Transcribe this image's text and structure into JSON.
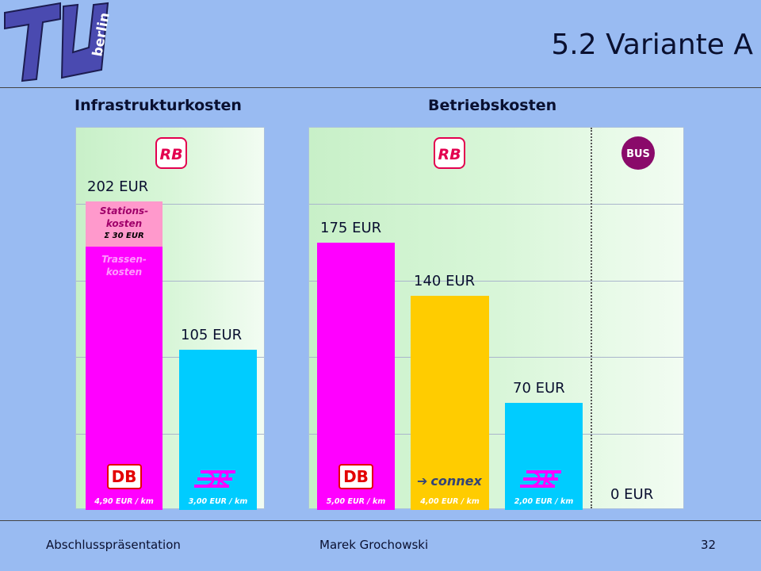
{
  "header": {
    "title": "5.2 Variante A",
    "logo_text": "berlin"
  },
  "chart_data": [
    {
      "type": "bar",
      "title": "Infrastrukturkosten",
      "unit": "EUR",
      "ylim": [
        0,
        250
      ],
      "grid": true,
      "categories": [
        "DB",
        "DRE"
      ],
      "values": [
        202,
        105
      ],
      "value_labels": [
        "202 EUR",
        "105 EUR"
      ],
      "rate_labels": [
        "4,90 EUR / km",
        "3,00 EUR / km"
      ],
      "colors": [
        "#ff00ff",
        "#00ccff"
      ],
      "stacked_segments": [
        {
          "category": "DB",
          "label_lines": [
            "Trassen-",
            "kosten"
          ],
          "value": 172,
          "color": "#ff00ff"
        },
        {
          "category": "DB",
          "label_lines": [
            "Stations-",
            "kosten",
            "Σ  30 EUR"
          ],
          "value": 30,
          "color": "#ff99cc"
        }
      ],
      "header_logo": "RB"
    },
    {
      "type": "bar",
      "title": "Betriebskosten",
      "unit": "EUR",
      "ylim": [
        0,
        250
      ],
      "grid": true,
      "categories": [
        "DB",
        "connex",
        "DRE",
        "BUS"
      ],
      "values": [
        175,
        140,
        70,
        0
      ],
      "value_labels": [
        "175 EUR",
        "140 EUR",
        "70 EUR",
        "0 EUR"
      ],
      "rate_labels": [
        "5,00 EUR / km",
        "4,00 EUR / km",
        "2,00 EUR / km",
        ""
      ],
      "colors": [
        "#ff00ff",
        "#ffcc00",
        "#00ccff",
        "#000000"
      ],
      "header_logos": [
        "RB",
        "BUS"
      ]
    }
  ],
  "logos": {
    "db": "DB",
    "connex": "connex",
    "rb": "RB",
    "bus": "BUS"
  },
  "footer": {
    "left": "Abschlusspräsentation",
    "center": "Marek Grochowski",
    "page": "32"
  }
}
